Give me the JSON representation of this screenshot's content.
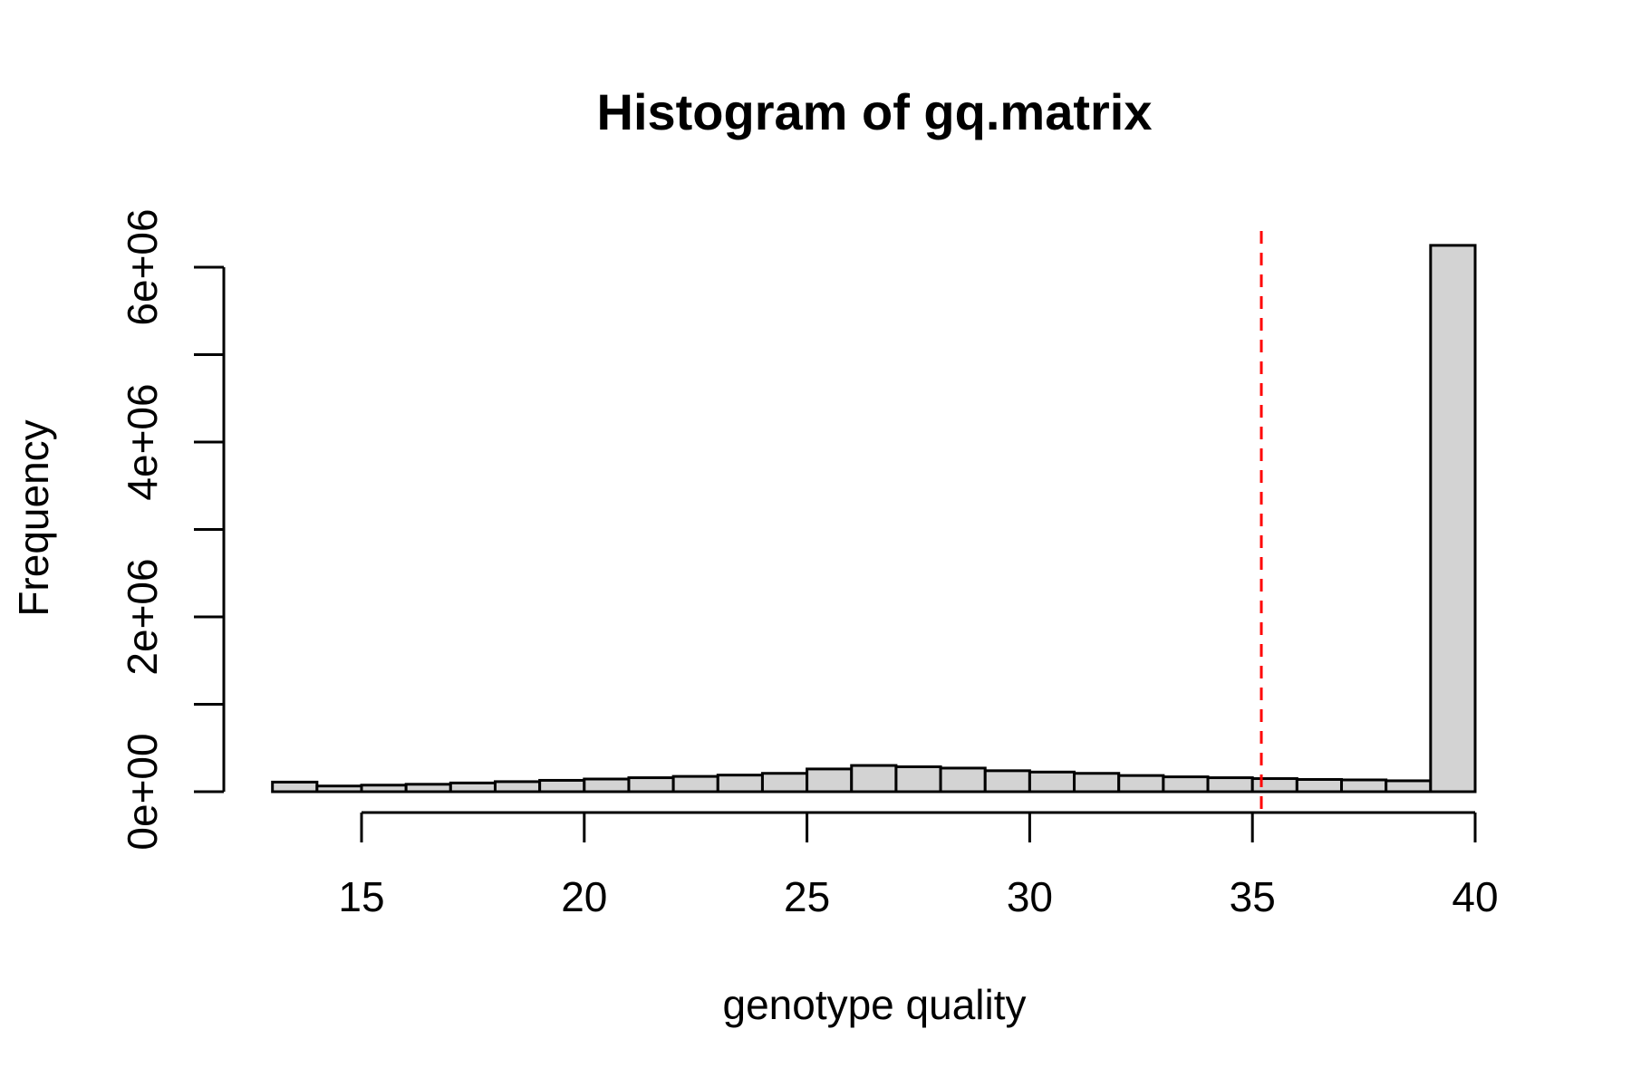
{
  "chart_data": {
    "type": "bar",
    "title": "Histogram of gq.matrix",
    "xlabel": "genotype quality",
    "ylabel": "Frequency",
    "xlim": [
      13,
      40
    ],
    "ylim": [
      0,
      6000000
    ],
    "x_ticks": [
      15,
      20,
      25,
      30,
      35,
      40
    ],
    "x_tick_labels": [
      "15",
      "20",
      "25",
      "30",
      "35",
      "40"
    ],
    "y_ticks": [
      0,
      1000000,
      2000000,
      3000000,
      4000000,
      5000000,
      6000000
    ],
    "y_tick_labels": [
      "0e+00",
      "",
      "2e+06",
      "",
      "4e+06",
      "",
      "6e+06"
    ],
    "bins": [
      {
        "x0": 13,
        "x1": 14,
        "value": 110000
      },
      {
        "x0": 14,
        "x1": 15,
        "value": 65000
      },
      {
        "x0": 15,
        "x1": 16,
        "value": 75000
      },
      {
        "x0": 16,
        "x1": 17,
        "value": 85000
      },
      {
        "x0": 17,
        "x1": 18,
        "value": 100000
      },
      {
        "x0": 18,
        "x1": 19,
        "value": 115000
      },
      {
        "x0": 19,
        "x1": 20,
        "value": 130000
      },
      {
        "x0": 20,
        "x1": 21,
        "value": 145000
      },
      {
        "x0": 21,
        "x1": 22,
        "value": 160000
      },
      {
        "x0": 22,
        "x1": 23,
        "value": 175000
      },
      {
        "x0": 23,
        "x1": 24,
        "value": 190000
      },
      {
        "x0": 24,
        "x1": 25,
        "value": 210000
      },
      {
        "x0": 25,
        "x1": 26,
        "value": 260000
      },
      {
        "x0": 26,
        "x1": 27,
        "value": 300000
      },
      {
        "x0": 27,
        "x1": 28,
        "value": 285000
      },
      {
        "x0": 28,
        "x1": 29,
        "value": 270000
      },
      {
        "x0": 29,
        "x1": 30,
        "value": 240000
      },
      {
        "x0": 30,
        "x1": 31,
        "value": 225000
      },
      {
        "x0": 31,
        "x1": 32,
        "value": 210000
      },
      {
        "x0": 32,
        "x1": 33,
        "value": 185000
      },
      {
        "x0": 33,
        "x1": 34,
        "value": 170000
      },
      {
        "x0": 34,
        "x1": 35,
        "value": 160000
      },
      {
        "x0": 35,
        "x1": 36,
        "value": 150000
      },
      {
        "x0": 36,
        "x1": 37,
        "value": 140000
      },
      {
        "x0": 37,
        "x1": 38,
        "value": 135000
      },
      {
        "x0": 38,
        "x1": 39,
        "value": 125000
      },
      {
        "x0": 39,
        "x1": 40,
        "value": 6250000
      }
    ],
    "reference_line": {
      "x": 35.2,
      "color": "#ff0000",
      "style": "dashed"
    },
    "bar_fill": "#d3d3d3",
    "grid": false
  }
}
